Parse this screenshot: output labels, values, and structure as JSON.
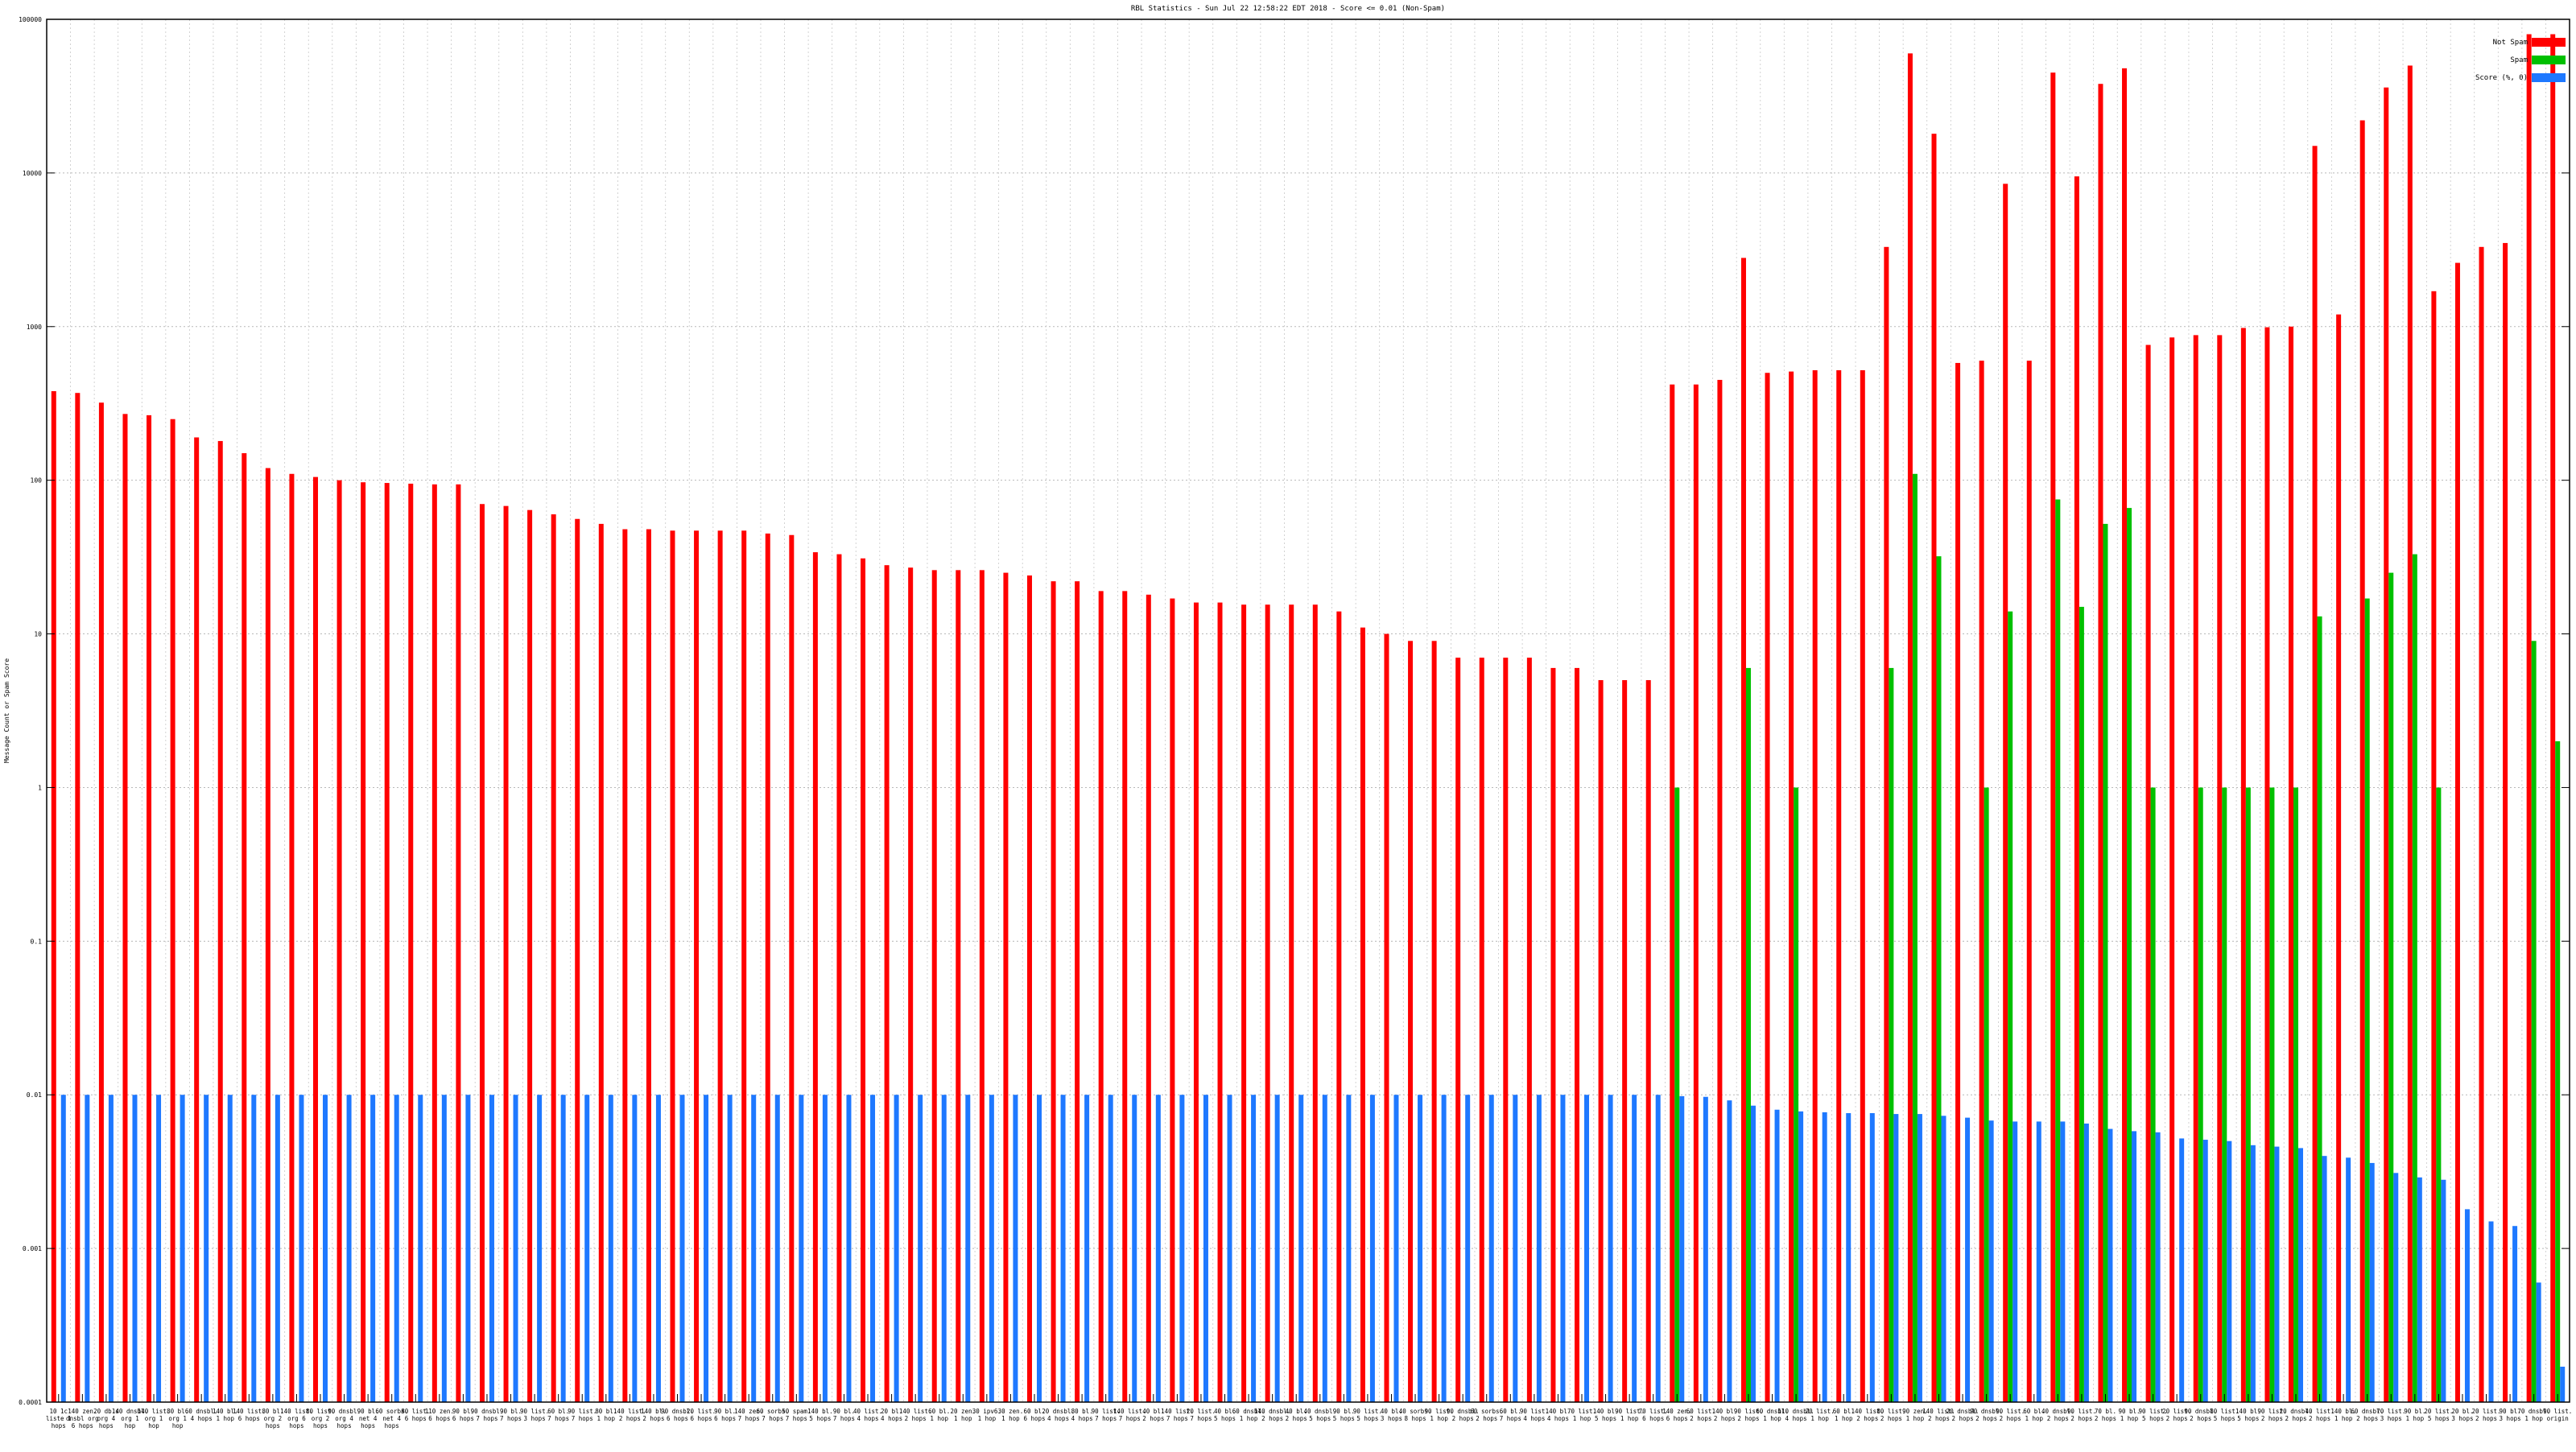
{
  "chart_data": {
    "type": "bar",
    "title": "RBL Statistics - Sun Jul 22 12:58:22 EDT 2018 - Score <= 0.01 (Non-Spam)",
    "ylabel": "Message Count or Spam Score",
    "xlabel": "",
    "yscale": "log",
    "ylim": [
      0.0001,
      100000
    ],
    "yticks": [
      "0.0001",
      "0.001",
      "0.01",
      "0.1",
      "1",
      "10",
      "100",
      "1000",
      "10000",
      "100000"
    ],
    "grid": true,
    "legend_position": "top-right",
    "series_colors": {
      "not_spam": "#ff0000",
      "spam": "#00c000",
      "score": "#1e78ff"
    },
    "series": [
      {
        "name": "Not Spam",
        "values": [
          380,
          370,
          320,
          270,
          265,
          250,
          190,
          180,
          150,
          120,
          110,
          105,
          100,
          97,
          96,
          95,
          94,
          94,
          70,
          68,
          64,
          60,
          56,
          52,
          48,
          48,
          47,
          47,
          47,
          47,
          45,
          44,
          34,
          33,
          31,
          28,
          27,
          26,
          26,
          26,
          25,
          24,
          22,
          22,
          19,
          19,
          18,
          17,
          16,
          16,
          15.5,
          15.5,
          15.5,
          15.5,
          14,
          11,
          10,
          9,
          9,
          7,
          7,
          7,
          7,
          6,
          6,
          5,
          5,
          5,
          420,
          420,
          450,
          2800,
          500,
          510,
          520,
          520,
          520,
          3300,
          60000,
          18000,
          580,
          600,
          8500,
          600,
          45000,
          9500,
          38000,
          48000,
          760,
          850,
          880,
          880,
          980,
          990,
          1000,
          15000,
          1200,
          22000,
          36000,
          50000,
          1700,
          2600,
          3300,
          3500,
          80000,
          80000
        ]
      },
      {
        "name": "Spam",
        "values": [
          0,
          0,
          0,
          0,
          0,
          0,
          0,
          0,
          0,
          0,
          0,
          0,
          0,
          0,
          0,
          0,
          0,
          0,
          0,
          0,
          0,
          0,
          0,
          0,
          0,
          0,
          0,
          0,
          0,
          0,
          0,
          0,
          0,
          0,
          0,
          0,
          0,
          0,
          0,
          0,
          0,
          0,
          0,
          0,
          0,
          0,
          0,
          0,
          0,
          0,
          0,
          0,
          0,
          0,
          0,
          0,
          0,
          0,
          0,
          0,
          0,
          0,
          0,
          0,
          0,
          0,
          0,
          0,
          1,
          0,
          0,
          6,
          0,
          1,
          0,
          0,
          0,
          6,
          110,
          32,
          0,
          1,
          14,
          0,
          75,
          15,
          52,
          66,
          1,
          0,
          1,
          1,
          1,
          1,
          1,
          13,
          0,
          17,
          25,
          33,
          1,
          0,
          0,
          0,
          9,
          2
        ]
      },
      {
        "name": "Score (%, 0)",
        "values": [
          0.01,
          0.01,
          0.01,
          0.01,
          0.01,
          0.01,
          0.01,
          0.01,
          0.01,
          0.01,
          0.01,
          0.01,
          0.01,
          0.01,
          0.01,
          0.01,
          0.01,
          0.01,
          0.01,
          0.01,
          0.01,
          0.01,
          0.01,
          0.01,
          0.01,
          0.01,
          0.01,
          0.01,
          0.01,
          0.01,
          0.01,
          0.01,
          0.01,
          0.01,
          0.01,
          0.01,
          0.01,
          0.01,
          0.01,
          0.01,
          0.01,
          0.01,
          0.01,
          0.01,
          0.01,
          0.01,
          0.01,
          0.01,
          0.01,
          0.01,
          0.01,
          0.01,
          0.01,
          0.01,
          0.01,
          0.01,
          0.01,
          0.01,
          0.01,
          0.01,
          0.01,
          0.01,
          0.01,
          0.01,
          0.01,
          0.01,
          0.01,
          0.01,
          0.0098,
          0.0097,
          0.0092,
          0.0085,
          0.008,
          0.0078,
          0.0077,
          0.0076,
          0.0076,
          0.0075,
          0.0075,
          0.0073,
          0.0071,
          0.0068,
          0.0067,
          0.0067,
          0.0067,
          0.0065,
          0.006,
          0.0058,
          0.0057,
          0.0052,
          0.0051,
          0.005,
          0.0047,
          0.0046,
          0.0045,
          0.004,
          0.0039,
          0.0036,
          0.0031,
          0.0029,
          0.0028,
          0.0018,
          0.0015,
          0.0014,
          0.0006,
          0.00017
        ]
      }
    ],
    "categories": [
      "10 1c liste 1 hops",
      "140 zen. dnsbl org 6 hops",
      "20 db.s org 4 hops",
      "140 dnsbl. org 1 hop",
      "140 list. org 1 hop",
      "80 bl. org 1 hop",
      "60 dnsbl. 4 hops",
      "140 bl. 1 hop",
      "140 list. 6 hops",
      "80 bl. org 2 hops",
      "140 list. org 6 hops",
      "80 list. org 2 hops",
      "90 dnsbl. org 4 hops",
      "90 bl. net 4 hops",
      "60 sorbs. net 4 hops",
      "80 list. 6 hops",
      "110 zen. 6 hops",
      "90 bl. 6 hops",
      "90 dnsbl. 7 hops",
      "90 bl. 7 hops",
      "90 list. 3 hops",
      "60 bl. 7 hops",
      "90 list. 7 hops",
      "80 bl. 1 hop",
      "140 list. 2 hops",
      "140 bl. 2 hops",
      "90 dnsbl. 6 hops",
      "20 list. 6 hops",
      "90 bl. 6 hops",
      "140 zen. 7 hops",
      "60 sorbs. 7 hops",
      "50 spam. 7 hops",
      "140 bl. 5 hops",
      "90 bl. 7 hops",
      "40 list. 4 hops",
      "20 bl. 4 hops",
      "140 list. 2 hops",
      "60 bl. 1 hop",
      "20 zen. 1 hop",
      "30 ipv6. 1 hop",
      "30 zen. 1 hop",
      "60 bl. 6 hops",
      "20 dnsbl. 4 hops",
      "80 bl. 4 hops",
      "90 list. 7 hops",
      "140 list. 7 hops",
      "40 bl. 2 hops",
      "140 list. 7 hops",
      "20 list. 7 hops",
      "40 bl. 5 hops",
      "60 dnsbl. 1 hop",
      "140 dnsbl. 2 hops",
      "40 bl. 2 hops",
      "40 dnsbl. 5 hops",
      "90 bl. 5 hops",
      "90 list. 5 hops",
      "40 bl. 3 hops",
      "40 sorbs. 8 hops",
      "90 list. 1 hop",
      "90 dnsbl. 2 hops",
      "60 sorbs. 2 hops",
      "60 bl. 7 hops",
      "90 list. 4 hops",
      "140 bl. 4 hops",
      "70 list. 1 hop",
      "140 bl. 5 hops",
      "90 list. 1 hop",
      "70 list. 6 hops",
      "140 zen. 6 hops",
      "60 list. 2 hops",
      "140 bl. 2 hops",
      "90 list. 2 hops",
      "60 dnsbl. 1 hop",
      "110 dnsbl. 4 hops",
      "20 list. 1 hop",
      "60 bl. 1 hop",
      "140 list. 2 hops",
      "80 list. 2 hops",
      "90 zen. 1 hop",
      "140 list. 2 hops",
      "20 dnsbl. 2 hops",
      "90 dnsbl. 2 hops",
      "90 list. 2 hops",
      "60 bl. 1 hop",
      "40 dnsbl. 2 hops",
      "90 list. 2 hops",
      "70 bl. 2 hops",
      "90 bl. 1 hop",
      "90 list. 5 hops",
      "20 list. 2 hops",
      "90 dnsbl. 2 hops",
      "80 list. 5 hops",
      "140 bl. 5 hops",
      "90 list. 2 hops",
      "20 dnsbl. 2 hops",
      "40 list. 2 hops",
      "140 bl. 1 hop",
      "60 dnsbl. 2 hops",
      "70 list. 3 hops",
      "90 bl. 1 hop",
      "20 list. 5 hops",
      "20 bl. 3 hops",
      "20 list. 2 hops",
      "90 bl. 3 hops",
      "70 dnsbl. 1 hop",
      "90 list. origin"
    ]
  }
}
